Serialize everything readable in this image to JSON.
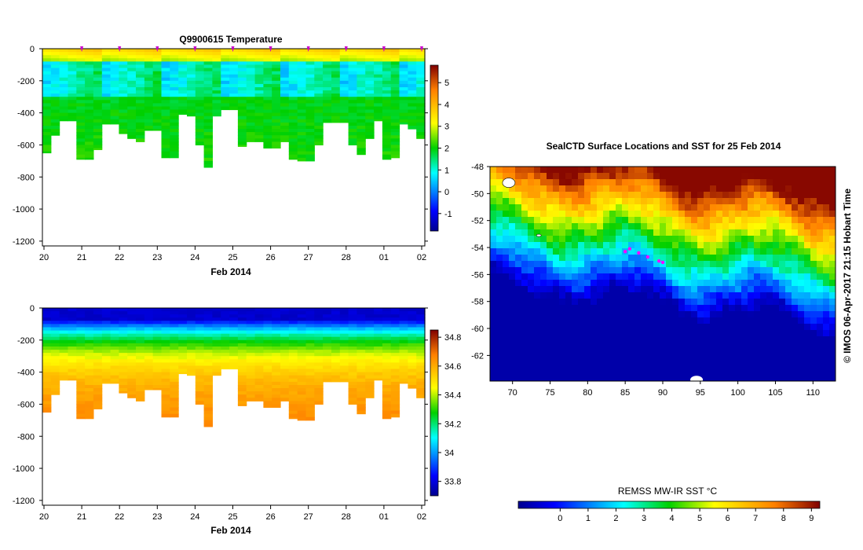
{
  "chart_data": [
    {
      "id": "temperature",
      "type": "heatmap",
      "title": "Q9900615  Temperature",
      "xlabel": "Feb 2014",
      "ylabel": "",
      "x_ticks": [
        "20",
        "21",
        "22",
        "23",
        "24",
        "25",
        "26",
        "27",
        "28",
        "01",
        "02"
      ],
      "y_ticks": [
        "0",
        "-200",
        "-400",
        "-600",
        "-800",
        "-1000",
        "-1200"
      ],
      "y_tick_values": [
        0,
        -200,
        -400,
        -600,
        -800,
        -1000,
        -1200
      ],
      "ylim": [
        -1230,
        0
      ],
      "colorbar": {
        "range": [
          -1.8,
          5.8
        ],
        "ticks": [
          "5",
          "4",
          "3",
          "2",
          "1",
          "0",
          "-1"
        ],
        "tick_values": [
          5,
          4,
          3,
          2,
          1,
          0,
          -1
        ]
      },
      "profile_markers_at_days": [
        1,
        2,
        3,
        4,
        5,
        6,
        7,
        8,
        9,
        10
      ],
      "profile_max_depths": [
        650,
        540,
        450,
        450,
        690,
        690,
        630,
        470,
        470,
        530,
        560,
        580,
        510,
        510,
        680,
        680,
        410,
        420,
        600,
        740,
        420,
        380,
        380,
        610,
        580,
        580,
        620,
        620,
        580,
        690,
        700,
        700,
        600,
        460,
        460,
        460,
        600,
        660,
        560,
        450,
        690,
        680,
        470,
        500,
        560
      ]
    },
    {
      "id": "salinity",
      "type": "heatmap",
      "title": "",
      "xlabel": "Feb 2014",
      "ylabel": "",
      "x_ticks": [
        "20",
        "21",
        "22",
        "23",
        "24",
        "25",
        "26",
        "27",
        "28",
        "01",
        "02"
      ],
      "y_ticks": [
        "0",
        "-200",
        "-400",
        "-600",
        "-800",
        "-1000",
        "-1200"
      ],
      "y_tick_values": [
        0,
        -200,
        -400,
        -600,
        -800,
        -1000,
        -1200
      ],
      "ylim": [
        -1230,
        0
      ],
      "colorbar": {
        "range": [
          33.7,
          34.85
        ],
        "ticks": [
          "34.8",
          "34.6",
          "34.4",
          "34.2",
          "34",
          "33.8"
        ],
        "tick_values": [
          34.8,
          34.6,
          34.4,
          34.2,
          34.0,
          33.8
        ]
      },
      "profile_max_depths": [
        650,
        540,
        450,
        450,
        690,
        690,
        630,
        470,
        470,
        530,
        560,
        580,
        510,
        510,
        680,
        680,
        410,
        420,
        600,
        740,
        420,
        380,
        380,
        610,
        580,
        580,
        620,
        620,
        580,
        690,
        700,
        700,
        600,
        460,
        460,
        460,
        600,
        660,
        560,
        450,
        690,
        680,
        470,
        500,
        560
      ]
    },
    {
      "id": "sst-map",
      "type": "heatmap",
      "title": "SealCTD Surface Locations and SST for 25 Feb 2014",
      "x_ticks": [
        "70",
        "75",
        "80",
        "85",
        "90",
        "95",
        "100",
        "105",
        "110"
      ],
      "x_tick_values": [
        70,
        75,
        80,
        85,
        90,
        95,
        100,
        105,
        110
      ],
      "xlim": [
        67,
        113
      ],
      "y_ticks": [
        "-48",
        "-50",
        "-52",
        "-54",
        "-56",
        "-58",
        "-60",
        "-62"
      ],
      "y_tick_values": [
        -48,
        -50,
        -52,
        -54,
        -56,
        -58,
        -60,
        -62
      ],
      "ylim": [
        -63.9,
        -48
      ],
      "credit": "© IMOS 06-Apr-2017 21:15 Hobart Time",
      "seal_locations": [
        [
          85,
          -54.3
        ],
        [
          85.6,
          -54.1
        ],
        [
          86.8,
          -54.4
        ],
        [
          88,
          -54.7
        ],
        [
          89.5,
          -55
        ],
        [
          90,
          -55.1
        ]
      ],
      "colorbar": {
        "label": "REMSS MW-IR SST °C",
        "range": [
          -1.5,
          9.3
        ],
        "ticks": [
          "0",
          "1",
          "2",
          "3",
          "4",
          "5",
          "6",
          "7",
          "8",
          "9"
        ],
        "tick_values": [
          0,
          1,
          2,
          3,
          4,
          5,
          6,
          7,
          8,
          9
        ]
      }
    }
  ]
}
